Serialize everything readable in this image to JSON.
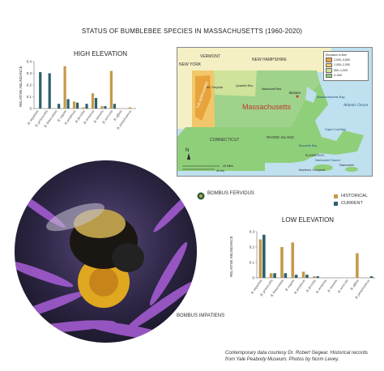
{
  "title": "STATUS OF BUMBLEBEE SPECIES IN MASSACHUSETTS",
  "title_years": "(1960-2020)",
  "colors": {
    "historical": "#c49a4a",
    "current": "#2d5f6b"
  },
  "species": [
    "B. impatiens",
    "B. griseocollis",
    "B. bimaculatus",
    "B. vagans",
    "B. perplexus",
    "B. fervidus",
    "B. ternarius",
    "B. borealis",
    "B. terricola",
    "B. affinis",
    "B. pensylvanicus"
  ],
  "chart_data": [
    {
      "type": "bar",
      "title": "HIGH ELEVATION",
      "ylabel": "RELATIVE ABUNDANCE",
      "ylim": [
        0,
        0.4
      ],
      "yticks": [
        "0",
        "0.1",
        "0.2",
        "0.3",
        "0.4"
      ],
      "categories": [
        "B. impatiens",
        "B. griseocollis",
        "B. bimaculatus",
        "B. vagans",
        "B. perplexus",
        "B. fervidus",
        "B. ternarius",
        "B. borealis",
        "B. terricola",
        "B. affinis",
        "B. pensylvanicus"
      ],
      "series": [
        {
          "name": "HISTORICAL",
          "values": [
            0,
            0,
            0,
            0.36,
            0.06,
            0.01,
            0.13,
            0.02,
            0.32,
            0,
            0.01
          ]
        },
        {
          "name": "CURRENT",
          "values": [
            0.31,
            0.3,
            0.04,
            0.08,
            0.05,
            0.04,
            0.09,
            0.02,
            0.04,
            0,
            0
          ]
        }
      ]
    },
    {
      "type": "bar",
      "title": "LOW ELEVATION",
      "ylabel": "RELATIVE ABUNDANCE",
      "ylim": [
        0,
        0.3
      ],
      "yticks": [
        "0",
        "0.1",
        "0.2",
        "0.3"
      ],
      "categories": [
        "B. impatiens",
        "B. griseocollis",
        "B. bimaculatus",
        "B. vagans",
        "B. perplexus",
        "B. fervidus",
        "B. ternarius",
        "B. borealis",
        "B. terricola",
        "B. affinis",
        "B. pensylvanicus"
      ],
      "series": [
        {
          "name": "HISTORICAL",
          "values": [
            0.25,
            0.03,
            0.2,
            0.23,
            0.04,
            0.01,
            0,
            0,
            0,
            0.16,
            0
          ]
        },
        {
          "name": "CURRENT",
          "values": [
            0.28,
            0.03,
            0.03,
            0.02,
            0.02,
            0.01,
            0,
            0,
            0,
            0,
            0.01
          ]
        }
      ]
    }
  ],
  "legend": {
    "historical": "HISTORICAL",
    "current": "CURRENT"
  },
  "map": {
    "title": "Massachusetts",
    "legend_title": "Elevation in feet",
    "legend_items": [
      {
        "label": "2,000–3,500",
        "color": "#e8a33c"
      },
      {
        "label": "1,000–2,000",
        "color": "#f2c76b"
      },
      {
        "label": "500–1,000",
        "color": "#cfe39a"
      },
      {
        "label": "0–500",
        "color": "#8fcf7a"
      }
    ],
    "labels": {
      "new_york": "NEW YORK",
      "vermont": "VERMONT",
      "new_hampshire": "NEW HAMPSHIRE",
      "connecticut": "CONNECTICUT",
      "rhode_island": "RHODE ISLAND",
      "boston": "Boston",
      "ma_bay": "Massachusetts Bay",
      "atlantic": "Atlantic Ocean",
      "cape_cod_bay": "Cape Cod Bay",
      "nantucket_sound": "Nantucket Sound",
      "nantucket": "Nantucket",
      "marthas": "Martha's Vineyard",
      "berkshires": "THE BERKSHIRES",
      "greylock": "Mt. Greylock",
      "wachusett": "Wachusett Res.",
      "quabbin": "Quabbin Res.",
      "buzzards": "Buzzards Bay",
      "elizabeth": "ELIZABETH IS.",
      "scale_mi": "40 Miles",
      "scale_km": "40 Km"
    }
  },
  "captions": {
    "fervidus": "BOMBUS FERVIDUS",
    "impatiens": "BOMBUS IMPATIENS"
  },
  "credit": "Contemporary data courtesy Dr. Robert Gegear. Historical records from Yale Peabody Museum. Photos by Norm Levey."
}
